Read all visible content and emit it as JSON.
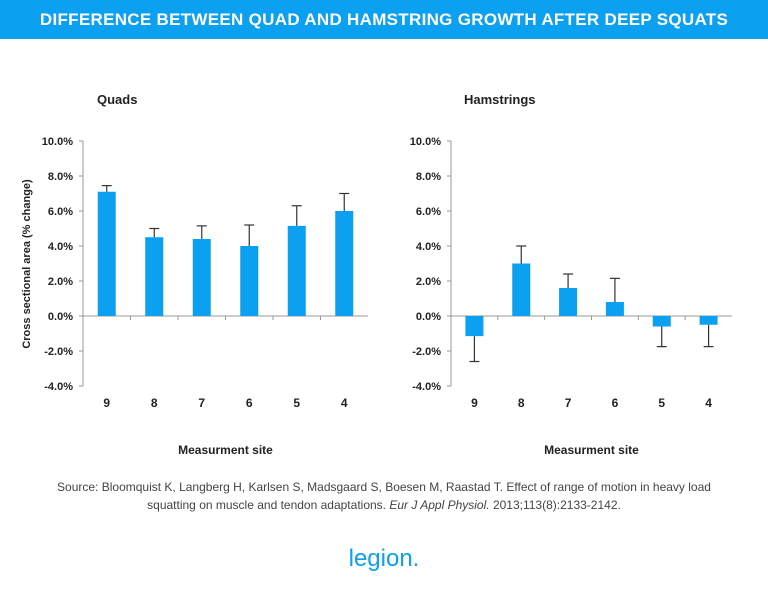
{
  "header": {
    "title": "DIFFERENCE BETWEEN QUAD AND HAMSTRING GROWTH AFTER DEEP SQUATS"
  },
  "chart_data": [
    {
      "type": "bar",
      "title": "Quads",
      "xlabel": "Measurment site",
      "ylabel": "Cross sectional area (% change)",
      "categories": [
        "9",
        "8",
        "7",
        "6",
        "5",
        "4"
      ],
      "values": [
        7.1,
        4.5,
        4.4,
        4.0,
        5.15,
        6.0
      ],
      "error_upper": [
        7.45,
        5.0,
        5.15,
        5.2,
        6.3,
        7.0
      ],
      "ylim": [
        -4,
        10
      ],
      "yticks": [
        "10.0%",
        "8.0%",
        "6.0%",
        "4.0%",
        "2.0%",
        "0.0%",
        "-2.0%",
        "-4.0%"
      ],
      "color": "#0ba0f0",
      "grid": false
    },
    {
      "type": "bar",
      "title": "Hamstrings",
      "xlabel": "Measurment site",
      "ylabel": "",
      "categories": [
        "9",
        "8",
        "7",
        "6",
        "5",
        "4"
      ],
      "values": [
        -1.15,
        3.0,
        1.6,
        0.8,
        -0.6,
        -0.5
      ],
      "error_upper": [
        -2.6,
        4.0,
        2.4,
        2.15,
        -1.75,
        -1.75
      ],
      "ylim": [
        -4,
        10
      ],
      "yticks": [
        "10.0%",
        "8.0%",
        "6.0%",
        "4.0%",
        "2.0%",
        "0.0%",
        "-2.0%",
        "-4.0%"
      ],
      "color": "#0ba0f0",
      "grid": false
    }
  ],
  "source": {
    "text": "Source: Bloomquist K, Langberg H, Karlsen S, Madsgaard S, Boesen M, Raastad T. Effect of range of motion in heavy load squatting on muscle and tendon adaptations. ",
    "journal": "Eur J Appl Physiol.",
    "rest": " 2013;113(8):2133-2142."
  },
  "logo": {
    "text": "legion."
  }
}
